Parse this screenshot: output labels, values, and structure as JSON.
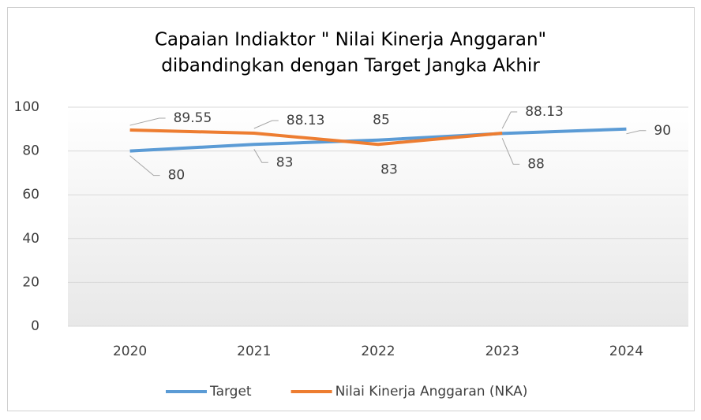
{
  "chart_data": {
    "type": "line",
    "title": [
      "Capaian Indiaktor \" Nilai Kinerja Anggaran\"",
      "dibandingkan dengan Target Jangka Akhir"
    ],
    "categories": [
      "2020",
      "2021",
      "2022",
      "2023",
      "2024"
    ],
    "series": [
      {
        "name": "Target",
        "color": "#5b9bd5",
        "values": [
          80,
          83,
          85,
          88,
          90
        ]
      },
      {
        "name": "Nilai Kinerja Anggaran (NKA)",
        "color": "#ed7d31",
        "values": [
          89.55,
          88.13,
          83,
          88.13,
          null
        ]
      }
    ],
    "ylim": [
      0,
      100
    ],
    "yticks": [
      0,
      20,
      40,
      60,
      80,
      100
    ],
    "grid": true,
    "legend": "bottom"
  }
}
